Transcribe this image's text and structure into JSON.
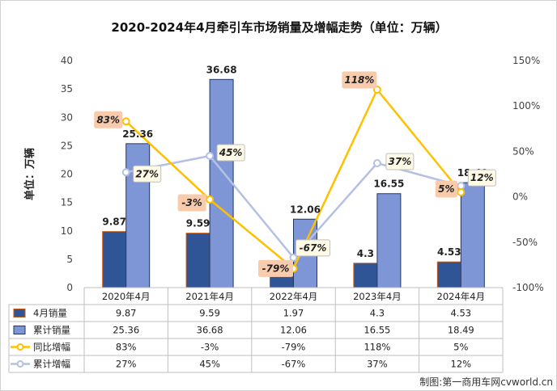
{
  "chart_data": {
    "type": "bar",
    "title": "2020-2024年4月牵引车市场销量及增幅走势（单位：万辆）",
    "ylabel": "单位：万辆",
    "categories": [
      "2020年4月",
      "2021年4月",
      "2022年4月",
      "2023年4月",
      "2024年4月"
    ],
    "ylim": [
      0,
      40
    ],
    "y_ticks": [
      "0",
      "5",
      "10",
      "15",
      "20",
      "25",
      "30",
      "35",
      "40"
    ],
    "y2lim": [
      -100,
      150
    ],
    "y2_ticks": [
      "-100%",
      "-50%",
      "0%",
      "50%",
      "100%",
      "150%"
    ],
    "series": [
      {
        "name": "4月销量",
        "kind": "bar",
        "axis": "left",
        "color": "#2F5597",
        "values": [
          9.87,
          9.59,
          1.97,
          4.3,
          4.53
        ],
        "labels": [
          "9.87",
          "9.59",
          "1.97",
          "4.3",
          "4.53"
        ]
      },
      {
        "name": "累计销量",
        "kind": "bar",
        "axis": "left",
        "color": "#7F96D6",
        "values": [
          25.36,
          36.68,
          12.06,
          16.55,
          18.49
        ],
        "labels": [
          "25.36",
          "36.68",
          "12.06",
          "16.55",
          "18.49"
        ]
      },
      {
        "name": "同比增幅",
        "kind": "line",
        "axis": "right",
        "color": "#FFC000",
        "values": [
          83,
          -3,
          -79,
          118,
          5
        ],
        "labels": [
          "83%",
          "-3%",
          "-79%",
          "118%",
          "5%"
        ]
      },
      {
        "name": "累计增幅",
        "kind": "line",
        "axis": "right",
        "color": "#B4C0E4",
        "values": [
          27,
          45,
          -67,
          37,
          12
        ],
        "labels": [
          "27%",
          "45%",
          "-67%",
          "37%",
          "12%"
        ]
      }
    ],
    "legend": "bottom-table",
    "grid": false
  },
  "credit": "制图:第一商用车网cvworld.cn"
}
